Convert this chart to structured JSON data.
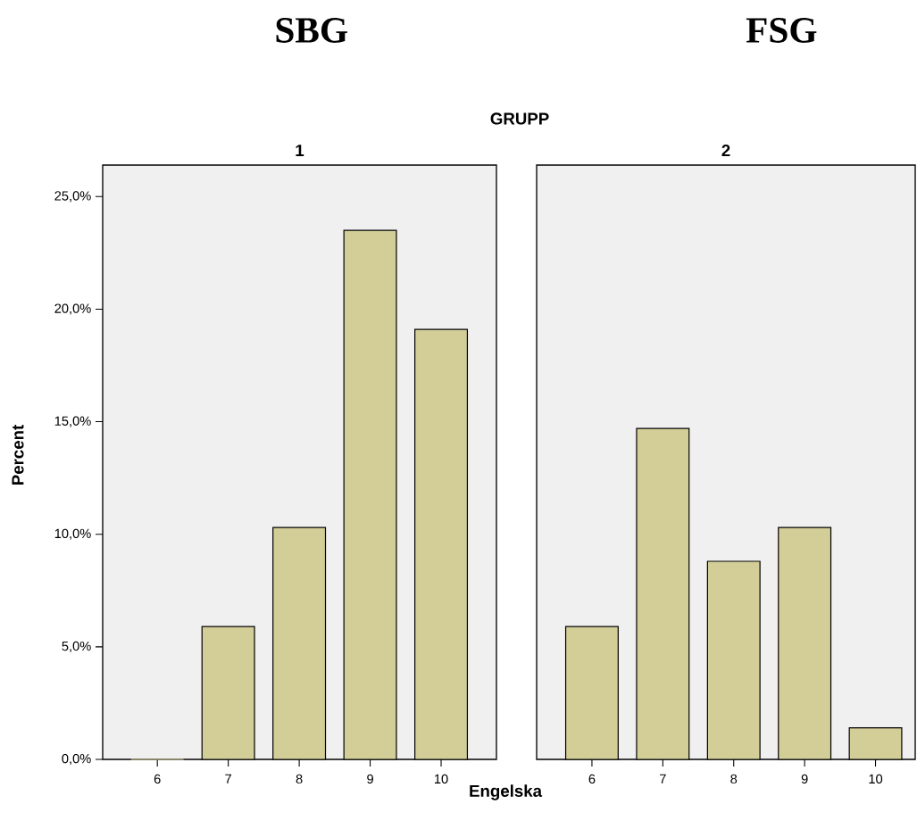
{
  "chart_data": [
    {
      "type": "bar",
      "title": "SBG",
      "subtitle": "1",
      "xlabel": "Engelska",
      "ylabel": "Percent",
      "annotations": [
        "GRUPP"
      ],
      "categories": [
        "6",
        "7",
        "8",
        "9",
        "10"
      ],
      "values": [
        0,
        5.9,
        10.3,
        23.5,
        19.1
      ],
      "color": "#d3ce98",
      "ylim": [
        0,
        26.4
      ],
      "yticks": [
        {
          "value": 0,
          "label": "0,0%"
        },
        {
          "value": 5,
          "label": "5,0%"
        },
        {
          "value": 10,
          "label": "10,0%"
        },
        {
          "value": 15,
          "label": "15,0%"
        },
        {
          "value": 20,
          "label": "20,0%"
        },
        {
          "value": 25,
          "label": "25,0%"
        }
      ]
    },
    {
      "type": "bar",
      "title": "FSG",
      "subtitle": "2",
      "categories": [
        "6",
        "7",
        "8",
        "9",
        "10"
      ],
      "values": [
        5.9,
        14.7,
        8.8,
        10.3,
        1.4
      ],
      "color": "#d3ce98",
      "ylim": [
        0,
        26.4
      ],
      "tick_labels": "x"
    }
  ]
}
